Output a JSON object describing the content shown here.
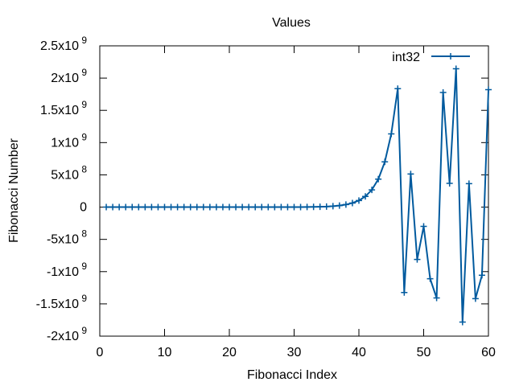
{
  "chart_data": {
    "type": "line",
    "title": "Values",
    "xlabel": "Fibonacci Index",
    "ylabel": "Fibonacci Number",
    "xlim": [
      0,
      60
    ],
    "ylim": [
      -2000000000,
      2500000000
    ],
    "grid": false,
    "legend_position": "top-right",
    "x_ticks": [
      0,
      10,
      20,
      30,
      40,
      50,
      60
    ],
    "y_ticks": [
      {
        "value": -2000000000,
        "mantissa": "-2x10",
        "exp": "9"
      },
      {
        "value": -1500000000,
        "mantissa": "-1.5x10",
        "exp": "9"
      },
      {
        "value": -1000000000,
        "mantissa": "-1x10",
        "exp": "9"
      },
      {
        "value": -500000000,
        "mantissa": "-5x10",
        "exp": "8"
      },
      {
        "value": 0,
        "mantissa": "0",
        "exp": ""
      },
      {
        "value": 500000000,
        "mantissa": "5x10",
        "exp": "8"
      },
      {
        "value": 1000000000,
        "mantissa": "1x10",
        "exp": "9"
      },
      {
        "value": 1500000000,
        "mantissa": "1.5x10",
        "exp": "9"
      },
      {
        "value": 2000000000,
        "mantissa": "2x10",
        "exp": "9"
      },
      {
        "value": 2500000000,
        "mantissa": "2.5x10",
        "exp": "9"
      }
    ],
    "series": [
      {
        "name": "int32",
        "color": "#005a9e",
        "x": [
          1,
          2,
          3,
          4,
          5,
          6,
          7,
          8,
          9,
          10,
          11,
          12,
          13,
          14,
          15,
          16,
          17,
          18,
          19,
          20,
          21,
          22,
          23,
          24,
          25,
          26,
          27,
          28,
          29,
          30,
          31,
          32,
          33,
          34,
          35,
          36,
          37,
          38,
          39,
          40,
          41,
          42,
          43,
          44,
          45,
          46,
          47,
          48,
          49,
          50,
          51,
          52,
          53,
          54,
          55,
          56,
          57,
          58,
          59,
          60
        ],
        "values": [
          1,
          1,
          2,
          3,
          5,
          8,
          13,
          21,
          34,
          55,
          89,
          144,
          233,
          377,
          610,
          987,
          1597,
          2584,
          4181,
          6765,
          10946,
          17711,
          28657,
          46368,
          75025,
          121393,
          196418,
          317811,
          514229,
          832040,
          1346269,
          2178309,
          3524578,
          5702887,
          9227465,
          14930352,
          24157817,
          39088169,
          63245986,
          102334155,
          165580141,
          267914296,
          433494437,
          701408733,
          1134903170,
          1836311903,
          -1323752223,
          512559680,
          -811192543,
          -298632863,
          -1109825406,
          -1408458269,
          1776683621,
          368225352,
          2144908973,
          -1781832971,
          363076002,
          -1418756969,
          -1055680967,
          1820529360
        ]
      }
    ]
  }
}
